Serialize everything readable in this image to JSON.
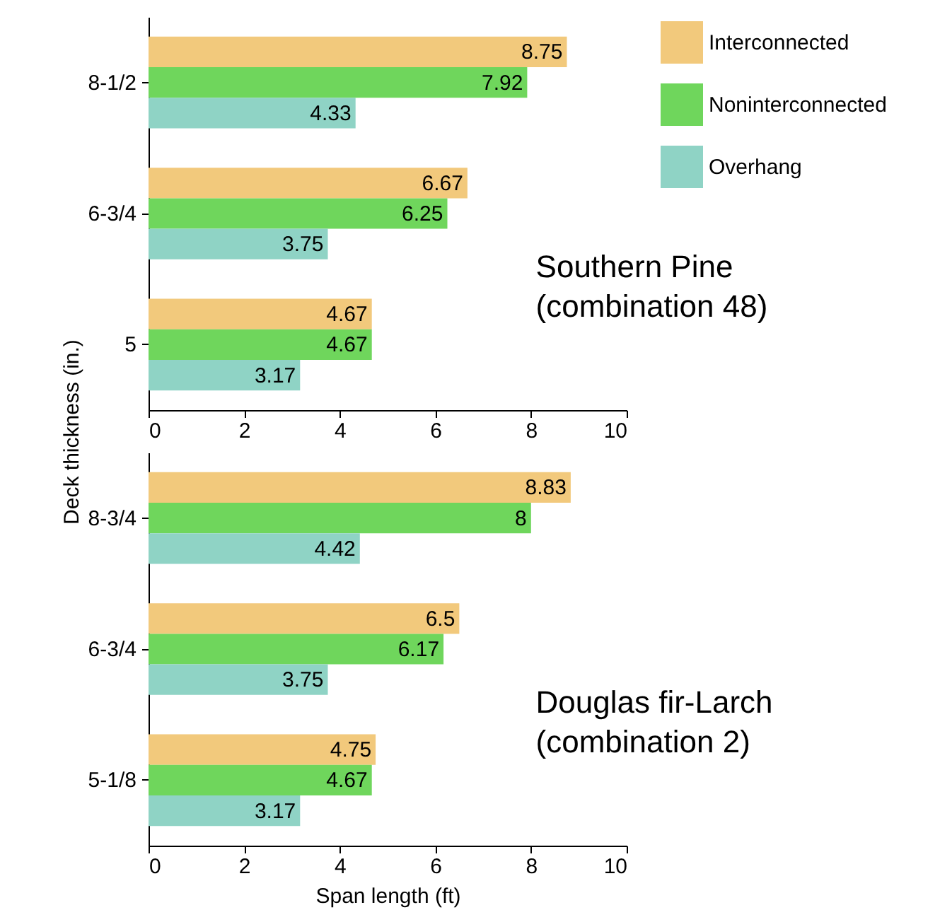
{
  "chart_data": [
    {
      "type": "bar",
      "orientation": "horizontal",
      "ylabel": "Deck thickness (in.)",
      "categories": [
        "8-1/2",
        "6-3/4",
        "5"
      ],
      "series": [
        {
          "name": "Interconnected",
          "color": "#f2c97c",
          "values": [
            8.75,
            6.67,
            4.67
          ]
        },
        {
          "name": "Noninterconnected",
          "color": "#6fd65c",
          "values": [
            7.92,
            6.25,
            4.67
          ]
        },
        {
          "name": "Overhang",
          "color": "#8fd3c5",
          "values": [
            4.33,
            3.75,
            3.17
          ]
        }
      ],
      "xlim": [
        0,
        10
      ],
      "xticks": [
        0,
        2,
        4,
        6,
        8,
        10
      ],
      "data_labels": true,
      "legend": "top right",
      "grid": false,
      "annotations": [
        "Southern Pine\n(combination 48)"
      ]
    },
    {
      "type": "bar",
      "orientation": "horizontal",
      "xlabel": "Span length (ft)",
      "categories": [
        "8-3/4",
        "6-3/4",
        "5-1/8"
      ],
      "series": [
        {
          "name": "Interconnected",
          "color": "#f2c97c",
          "values": [
            8.83,
            6.5,
            4.75
          ]
        },
        {
          "name": "Noninterconnected",
          "color": "#6fd65c",
          "values": [
            8,
            6.17,
            4.67
          ]
        },
        {
          "name": "Overhang",
          "color": "#8fd3c5",
          "values": [
            4.42,
            3.75,
            3.17
          ]
        }
      ],
      "xlim": [
        0,
        10
      ],
      "xticks": [
        0,
        2,
        4,
        6,
        8,
        10
      ],
      "data_labels": true,
      "grid": false,
      "annotations": [
        "Douglas fir-Larch\n(combination 2)"
      ]
    }
  ]
}
